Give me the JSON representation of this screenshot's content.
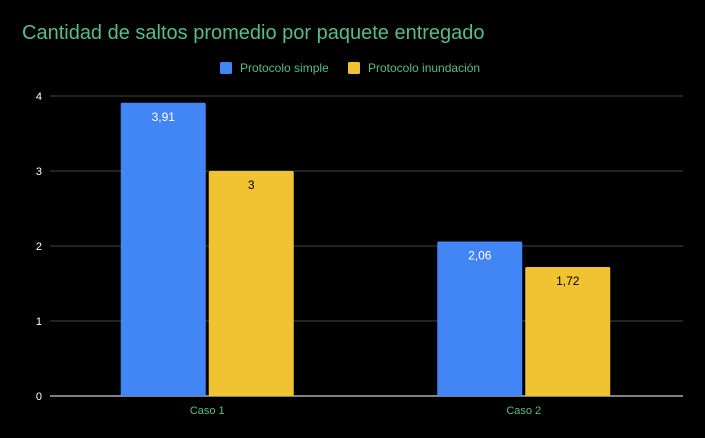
{
  "chart_data": {
    "type": "bar",
    "title": "Cantidad de saltos promedio por paquete entregado",
    "categories": [
      "Caso 1",
      "Caso 2"
    ],
    "series": [
      {
        "name": "Protocolo simple",
        "values": [
          3.91,
          2.06
        ],
        "labels": [
          "3,91",
          "2,06"
        ],
        "color": "#4285f4",
        "label_color": "#ffffff"
      },
      {
        "name": "Protocolo inundación",
        "values": [
          3,
          1.72
        ],
        "labels": [
          "3",
          "1,72"
        ],
        "color": "#f1c232",
        "label_color": "#000000"
      }
    ],
    "y_ticks": [
      "0",
      "1",
      "2",
      "3",
      "4"
    ],
    "ylim": [
      0,
      4
    ],
    "grid": true,
    "legend_position": "top-center"
  },
  "colors": {
    "background": "#000000",
    "title": "#57bb8a",
    "axis_text": "#ffffff",
    "category_text": "#57bb8a",
    "legend_text": "#57bb8a",
    "gridline": "#444444"
  }
}
